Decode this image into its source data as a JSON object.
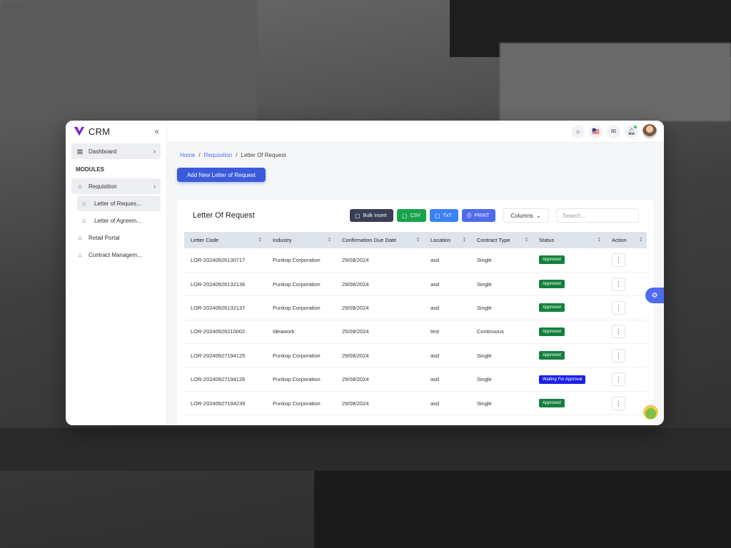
{
  "app": {
    "name": "CRM"
  },
  "sidebar": {
    "dashboard": "Dashboard",
    "section": "MODULES",
    "requisition": "Requisition",
    "sub_items": [
      "Letter of Reques...",
      "Letter of Agreem..."
    ],
    "retail_portal": "Retail Portal",
    "contract_management": "Contract Managem..."
  },
  "breadcrumb": {
    "home": "Home",
    "section": "Requisition",
    "current": "Letter Of Request"
  },
  "actions": {
    "add_new": "Add New Letter of Request"
  },
  "card": {
    "title": "Letter Of Request",
    "tools": {
      "bulk_insert": "Bulk Insert",
      "csv": "CSV",
      "txt": "TxT",
      "print": "PRINT"
    },
    "columns_label": "Columns",
    "search_placeholder": "Search..."
  },
  "table": {
    "headers": [
      "Letter Code",
      "Industry",
      "Confirmation Due Date",
      "Location",
      "Contract Type",
      "Status",
      "Action"
    ],
    "rows": [
      {
        "code": "LOR-20240926130717",
        "industry": "Punkop Corporation",
        "due": "29/08/2024",
        "location": "asd",
        "type": "Single",
        "status": "Approved"
      },
      {
        "code": "LOR-20240926132136",
        "industry": "Punkop Corporation",
        "due": "29/08/2024",
        "location": "asd",
        "type": "Single",
        "status": "Approved"
      },
      {
        "code": "LOR-20240926132137",
        "industry": "Punkop Corporation",
        "due": "29/08/2024",
        "location": "asd",
        "type": "Single",
        "status": "Approved"
      },
      {
        "code": "LOR-20240926210002",
        "industry": "Ideawork",
        "due": "25/09/2024",
        "location": "test",
        "type": "Continuous",
        "status": "Approved"
      },
      {
        "code": "LOR-20240927194125",
        "industry": "Punkop Corporation",
        "due": "29/08/2024",
        "location": "asd",
        "type": "Single",
        "status": "Approved"
      },
      {
        "code": "LOR-20240927194126",
        "industry": "Punkop Corporation",
        "due": "29/08/2024",
        "location": "asd",
        "type": "Single",
        "status": "Waiting For Approval"
      },
      {
        "code": "LOR-20240927194239",
        "industry": "Punkop Corporation",
        "due": "29/08/2024",
        "location": "asd",
        "type": "Single",
        "status": "Approved"
      }
    ]
  },
  "colors": {
    "primary": "#3b5bdb",
    "approved": "#15803d",
    "waiting": "#1d1fe6",
    "csv": "#16a34a",
    "txt": "#3b82f6",
    "bulk": "#3a3f55"
  },
  "icons": {
    "sun": "sun-icon",
    "flag": "us-flag-icon",
    "mail": "mail-icon",
    "bell": "bell-icon"
  }
}
